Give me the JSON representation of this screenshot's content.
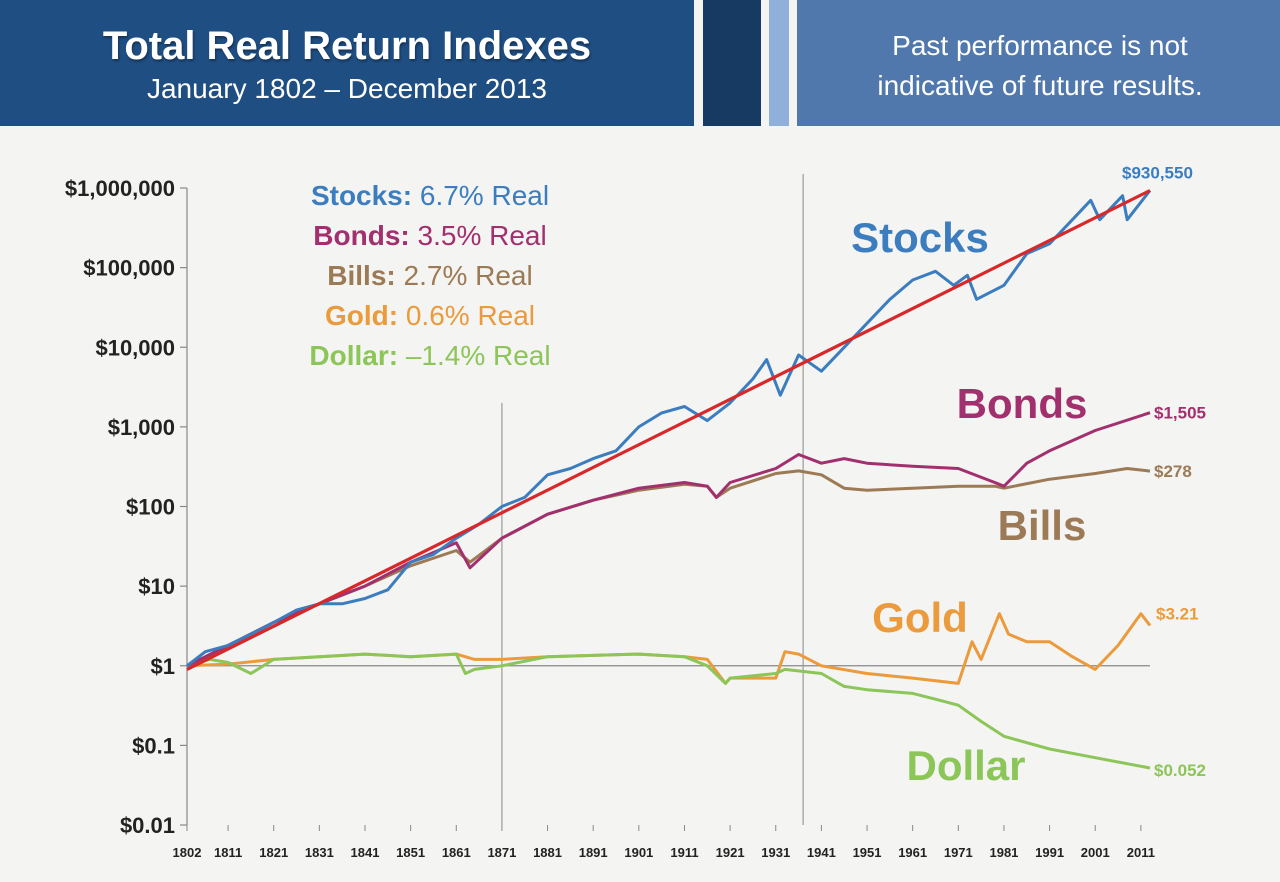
{
  "header": {
    "title": "Total Real Return Indexes",
    "subtitle": "January 1802 – December 2013",
    "disclaimer_line1": "Past performance is not",
    "disclaimer_line2": "indicative of future results."
  },
  "colors": {
    "stocks": "#3b7dbf",
    "bonds": "#a3306e",
    "bills": "#9c7a55",
    "gold": "#eb9a3c",
    "dollar": "#8cc558",
    "trend": "#d8282a",
    "header_dark": "#1f4e83",
    "header_light": "#5078ad"
  },
  "chart_data": {
    "type": "line",
    "y_scale": "log",
    "ylim": [
      0.01,
      1000000
    ],
    "xlim": [
      1802,
      2013
    ],
    "y_tick_values": [
      1000000,
      100000,
      10000,
      1000,
      100,
      10,
      1,
      0.1,
      0.01
    ],
    "y_tick_labels": [
      "$1,000,000",
      "$100,000",
      "$10,000",
      "$1,000",
      "$100",
      "$10",
      "$1",
      "$0.1",
      "$0.01"
    ],
    "x_ticks": [
      1802,
      1811,
      1821,
      1831,
      1841,
      1851,
      1861,
      1871,
      1881,
      1891,
      1901,
      1911,
      1921,
      1931,
      1941,
      1951,
      1961,
      1971,
      1981,
      1991,
      2001,
      2011
    ],
    "vertical_lines": [
      1871,
      1937
    ],
    "legend_entries": [
      {
        "key": "stocks",
        "label": "Stocks:",
        "value": "6.7% Real"
      },
      {
        "key": "bonds",
        "label": "Bonds:",
        "value": "3.5% Real"
      },
      {
        "key": "bills",
        "label": "Bills:",
        "value": "2.7% Real"
      },
      {
        "key": "gold",
        "label": "Gold:",
        "value": "0.6% Real"
      },
      {
        "key": "dollar",
        "label": "Dollar:",
        "value": "–1.4% Real"
      }
    ],
    "series": [
      {
        "key": "stocks",
        "name": "Stocks",
        "end_label": "$930,550",
        "x": [
          1802,
          1806,
          1811,
          1816,
          1821,
          1826,
          1831,
          1836,
          1841,
          1846,
          1851,
          1856,
          1861,
          1866,
          1871,
          1876,
          1881,
          1886,
          1891,
          1896,
          1901,
          1906,
          1911,
          1916,
          1921,
          1926,
          1929,
          1932,
          1936,
          1941,
          1946,
          1951,
          1956,
          1961,
          1966,
          1970,
          1973,
          1975,
          1981,
          1986,
          1991,
          1996,
          2000,
          2002,
          2007,
          2008,
          2013
        ],
        "y": [
          1,
          1.5,
          1.8,
          2.5,
          3.5,
          5,
          6,
          6,
          7,
          9,
          20,
          25,
          40,
          60,
          100,
          130,
          250,
          300,
          400,
          500,
          1000,
          1500,
          1800,
          1200,
          2000,
          4000,
          7000,
          2500,
          8000,
          5000,
          10000,
          20000,
          40000,
          70000,
          90000,
          60000,
          80000,
          40000,
          60000,
          150000,
          200000,
          400000,
          700000,
          400000,
          800000,
          400000,
          930550
        ]
      },
      {
        "key": "bonds",
        "name": "Bonds",
        "end_label": "$1,505",
        "x": [
          1802,
          1811,
          1821,
          1831,
          1841,
          1851,
          1861,
          1864,
          1871,
          1881,
          1891,
          1901,
          1911,
          1916,
          1918,
          1921,
          1931,
          1936,
          1941,
          1946,
          1951,
          1961,
          1971,
          1979,
          1981,
          1986,
          1991,
          2001,
          2013
        ],
        "y": [
          1,
          1.8,
          3.5,
          6,
          10,
          20,
          35,
          17,
          40,
          80,
          120,
          170,
          200,
          180,
          130,
          200,
          300,
          450,
          350,
          400,
          350,
          320,
          300,
          200,
          180,
          350,
          500,
          900,
          1505
        ]
      },
      {
        "key": "bills",
        "name": "Bills",
        "end_label": "$278",
        "x": [
          1802,
          1811,
          1821,
          1831,
          1841,
          1851,
          1861,
          1864,
          1871,
          1881,
          1891,
          1901,
          1911,
          1916,
          1918,
          1921,
          1931,
          1936,
          1941,
          1946,
          1951,
          1961,
          1971,
          1979,
          1981,
          1991,
          2001,
          2008,
          2013
        ],
        "y": [
          1,
          1.7,
          3.5,
          6,
          10,
          18,
          28,
          20,
          40,
          80,
          120,
          160,
          190,
          180,
          130,
          170,
          260,
          280,
          250,
          170,
          160,
          170,
          180,
          180,
          170,
          220,
          260,
          300,
          278
        ]
      },
      {
        "key": "gold",
        "name": "Gold",
        "end_label": "$3.21",
        "x": [
          1802,
          1811,
          1821,
          1831,
          1841,
          1851,
          1861,
          1865,
          1871,
          1881,
          1891,
          1901,
          1911,
          1916,
          1920,
          1921,
          1931,
          1933,
          1936,
          1941,
          1951,
          1961,
          1971,
          1974,
          1976,
          1980,
          1982,
          1986,
          1991,
          1996,
          2001,
          2006,
          2011,
          2013
        ],
        "y": [
          1,
          1.05,
          1.2,
          1.3,
          1.4,
          1.3,
          1.4,
          1.2,
          1.2,
          1.3,
          1.35,
          1.4,
          1.3,
          1.2,
          0.6,
          0.7,
          0.7,
          1.5,
          1.4,
          1.0,
          0.8,
          0.7,
          0.6,
          2,
          1.2,
          4.5,
          2.5,
          2,
          2,
          1.3,
          0.9,
          1.8,
          4.5,
          3.21
        ]
      },
      {
        "key": "dollar",
        "name": "Dollar",
        "end_label": "$0.052",
        "x": [
          1802,
          1807,
          1811,
          1816,
          1821,
          1831,
          1841,
          1851,
          1861,
          1863,
          1865,
          1871,
          1881,
          1891,
          1901,
          1911,
          1916,
          1920,
          1921,
          1931,
          1933,
          1941,
          1946,
          1951,
          1961,
          1966,
          1971,
          1976,
          1981,
          1991,
          2001,
          2013
        ],
        "y": [
          1,
          1.2,
          1.1,
          0.8,
          1.2,
          1.3,
          1.4,
          1.3,
          1.4,
          0.8,
          0.9,
          1.0,
          1.3,
          1.35,
          1.4,
          1.3,
          1.0,
          0.6,
          0.7,
          0.8,
          0.9,
          0.8,
          0.55,
          0.5,
          0.45,
          0.38,
          0.32,
          0.2,
          0.13,
          0.09,
          0.07,
          0.052
        ]
      },
      {
        "key": "trend",
        "name": "",
        "end_label": "",
        "x": [
          1802,
          2013
        ],
        "y": [
          0.9,
          930550
        ]
      }
    ],
    "series_labels": [
      {
        "key": "stocks",
        "text": "Stocks"
      },
      {
        "key": "bonds",
        "text": "Bonds"
      },
      {
        "key": "bills",
        "text": "Bills"
      },
      {
        "key": "gold",
        "text": "Gold"
      },
      {
        "key": "dollar",
        "text": "Dollar"
      }
    ]
  }
}
